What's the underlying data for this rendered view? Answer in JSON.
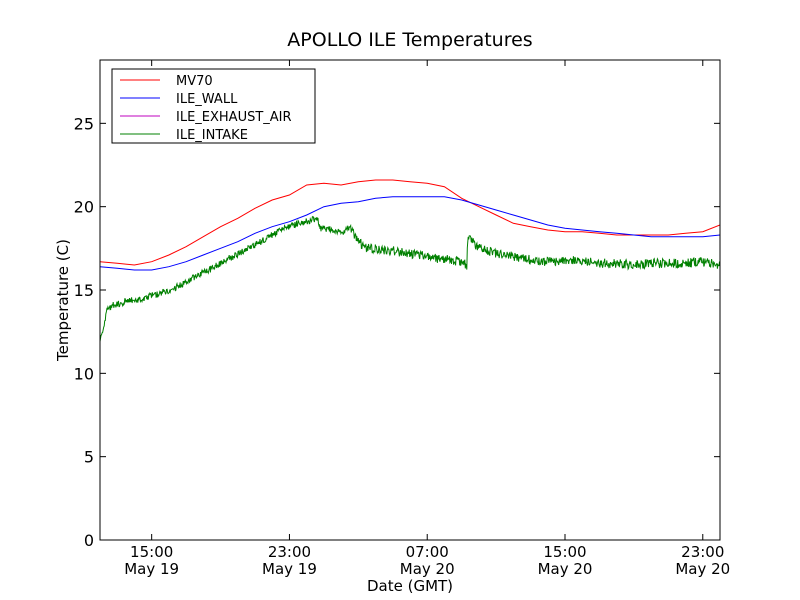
{
  "chart_data": {
    "type": "line",
    "title": "APOLLO ILE Temperatures",
    "xlabel": "Date (GMT)",
    "ylabel": "Temperature (C)",
    "x_unit": "hours since May 19 12:00 GMT",
    "xlim": [
      0,
      36
    ],
    "ylim": [
      0,
      28.8
    ],
    "yticks": [
      0,
      5,
      10,
      15,
      20,
      25
    ],
    "xticks": [
      {
        "x": 3,
        "time": "15:00",
        "date": "May 19"
      },
      {
        "x": 11,
        "time": "23:00",
        "date": "May 19"
      },
      {
        "x": 19,
        "time": "07:00",
        "date": "May 20"
      },
      {
        "x": 27,
        "time": "15:00",
        "date": "May 20"
      },
      {
        "x": 35,
        "time": "23:00",
        "date": "May 20"
      }
    ],
    "legend": {
      "position": "top-left"
    },
    "series": [
      {
        "name": "MV70",
        "color": "#ff0000",
        "x": [
          0,
          1,
          2,
          3,
          4,
          5,
          6,
          7,
          8,
          9,
          10,
          11,
          12,
          13,
          14,
          15,
          16,
          17,
          18,
          19,
          20,
          21,
          22,
          23,
          24,
          25,
          26,
          27,
          28,
          29,
          30,
          31,
          32,
          33,
          34,
          35,
          36
        ],
        "y": [
          16.7,
          16.6,
          16.5,
          16.7,
          17.1,
          17.6,
          18.2,
          18.8,
          19.3,
          19.9,
          20.4,
          20.7,
          21.3,
          21.4,
          21.3,
          21.5,
          21.6,
          21.6,
          21.5,
          21.4,
          21.2,
          20.5,
          20.0,
          19.5,
          19.0,
          18.8,
          18.6,
          18.5,
          18.5,
          18.4,
          18.3,
          18.3,
          18.3,
          18.3,
          18.4,
          18.5,
          18.9
        ]
      },
      {
        "name": "ILE_WALL",
        "color": "#0000ff",
        "x": [
          0,
          1,
          2,
          3,
          4,
          5,
          6,
          7,
          8,
          9,
          10,
          11,
          12,
          13,
          14,
          15,
          16,
          17,
          18,
          19,
          20,
          21,
          22,
          23,
          24,
          25,
          26,
          27,
          28,
          29,
          30,
          31,
          32,
          33,
          34,
          35,
          36
        ],
        "y": [
          16.4,
          16.3,
          16.2,
          16.2,
          16.4,
          16.7,
          17.1,
          17.5,
          17.9,
          18.4,
          18.8,
          19.1,
          19.5,
          20.0,
          20.2,
          20.3,
          20.5,
          20.6,
          20.6,
          20.6,
          20.6,
          20.4,
          20.1,
          19.8,
          19.5,
          19.2,
          18.9,
          18.7,
          18.6,
          18.5,
          18.4,
          18.3,
          18.2,
          18.2,
          18.2,
          18.2,
          18.3
        ]
      },
      {
        "name": "ILE_EXHAUST_AIR",
        "color": "#bf00bf",
        "x": [],
        "y": []
      },
      {
        "name": "ILE_INTAKE",
        "color": "#008000",
        "x": [
          0,
          0.15,
          0.4,
          0.8,
          1.5,
          2.5,
          3.5,
          4.5,
          5.5,
          6.5,
          7.5,
          8.5,
          9.5,
          10.5,
          11.5,
          12.6,
          12.8,
          13.5,
          14.2,
          14.5,
          15.0,
          15.5,
          16.5,
          17.5,
          18.5,
          19.5,
          20.5,
          21.3,
          21.35,
          21.5,
          22.0,
          23.0,
          24.0,
          25.0,
          26.0,
          27.0,
          28.0,
          29.0,
          30.0,
          31.0,
          32.0,
          33.0,
          34.0,
          35.0,
          36.0
        ],
        "y": [
          12.0,
          12.5,
          13.8,
          14.1,
          14.3,
          14.5,
          14.8,
          15.2,
          15.8,
          16.3,
          16.9,
          17.4,
          18.0,
          18.6,
          19.0,
          19.3,
          18.7,
          18.6,
          18.5,
          18.8,
          17.9,
          17.5,
          17.4,
          17.3,
          17.1,
          16.9,
          16.8,
          16.5,
          18.0,
          18.0,
          17.5,
          17.2,
          17.0,
          16.8,
          16.7,
          16.8,
          16.7,
          16.6,
          16.6,
          16.5,
          16.6,
          16.6,
          16.6,
          16.7,
          16.5
        ]
      }
    ]
  }
}
